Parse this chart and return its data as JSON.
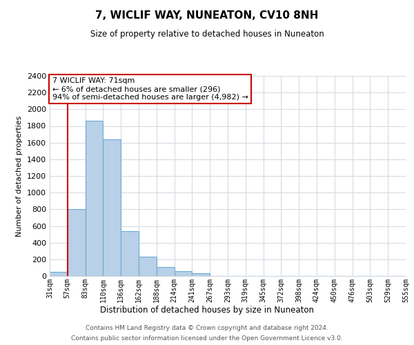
{
  "title": "7, WICLIF WAY, NUNEATON, CV10 8NH",
  "subtitle": "Size of property relative to detached houses in Nuneaton",
  "xlabel": "Distribution of detached houses by size in Nuneaton",
  "ylabel": "Number of detached properties",
  "bin_labels": [
    "31sqm",
    "57sqm",
    "83sqm",
    "110sqm",
    "136sqm",
    "162sqm",
    "188sqm",
    "214sqm",
    "241sqm",
    "267sqm",
    "293sqm",
    "319sqm",
    "345sqm",
    "372sqm",
    "398sqm",
    "424sqm",
    "450sqm",
    "476sqm",
    "503sqm",
    "529sqm",
    "555sqm"
  ],
  "bar_values": [
    50,
    800,
    1860,
    1640,
    540,
    235,
    110,
    55,
    30,
    0,
    0,
    0,
    0,
    0,
    0,
    0,
    0,
    0,
    0,
    0
  ],
  "bar_color": "#b8d0e8",
  "bar_edge_color": "#6aaad4",
  "vline_x_bin": 1,
  "vline_color": "#cc0000",
  "ylim": [
    0,
    2400
  ],
  "yticks": [
    0,
    200,
    400,
    600,
    800,
    1000,
    1200,
    1400,
    1600,
    1800,
    2000,
    2200,
    2400
  ],
  "annotation_title": "7 WICLIF WAY: 71sqm",
  "annotation_line1": "← 6% of detached houses are smaller (296)",
  "annotation_line2": "94% of semi-detached houses are larger (4,982) →",
  "annotation_box_color": "#ffffff",
  "annotation_box_edge": "#cc0000",
  "footer_line1": "Contains HM Land Registry data © Crown copyright and database right 2024.",
  "footer_line2": "Contains public sector information licensed under the Open Government Licence v3.0.",
  "background_color": "#ffffff",
  "grid_color": "#d0d8e0"
}
